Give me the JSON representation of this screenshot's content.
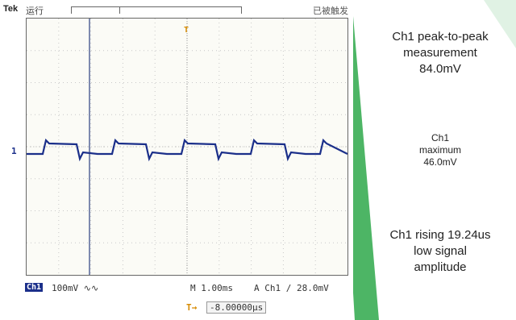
{
  "scope": {
    "brand": "Tek",
    "run_status": "运行",
    "trigger_status": "已被触发",
    "trigger_level_marker": "T",
    "channel_marker": "1",
    "channel_badge": "Ch1",
    "vertical_scale": "100mV ∿∿",
    "timebase": "M 1.00ms",
    "trigger_setting": "A  Ch1  ∕  28.0mV",
    "offset_marker": "T→",
    "offset_value": "-8.00000μs",
    "trace_color": "#1b2f8a",
    "trigger_color": "#d68a00"
  },
  "measurements": {
    "peak_to_peak": {
      "line1": "Ch1 peak-to-peak",
      "line2": "measurement",
      "line3": "84.0mV"
    },
    "maximum": {
      "line1": "Ch1",
      "line2": "maximum",
      "line3": "46.0mV"
    },
    "rising": {
      "line1": "Ch1 rising 19.24us",
      "line2": "low signal",
      "line3": "amplitude"
    }
  },
  "theme": {
    "accent_green": "#2ea84a"
  }
}
